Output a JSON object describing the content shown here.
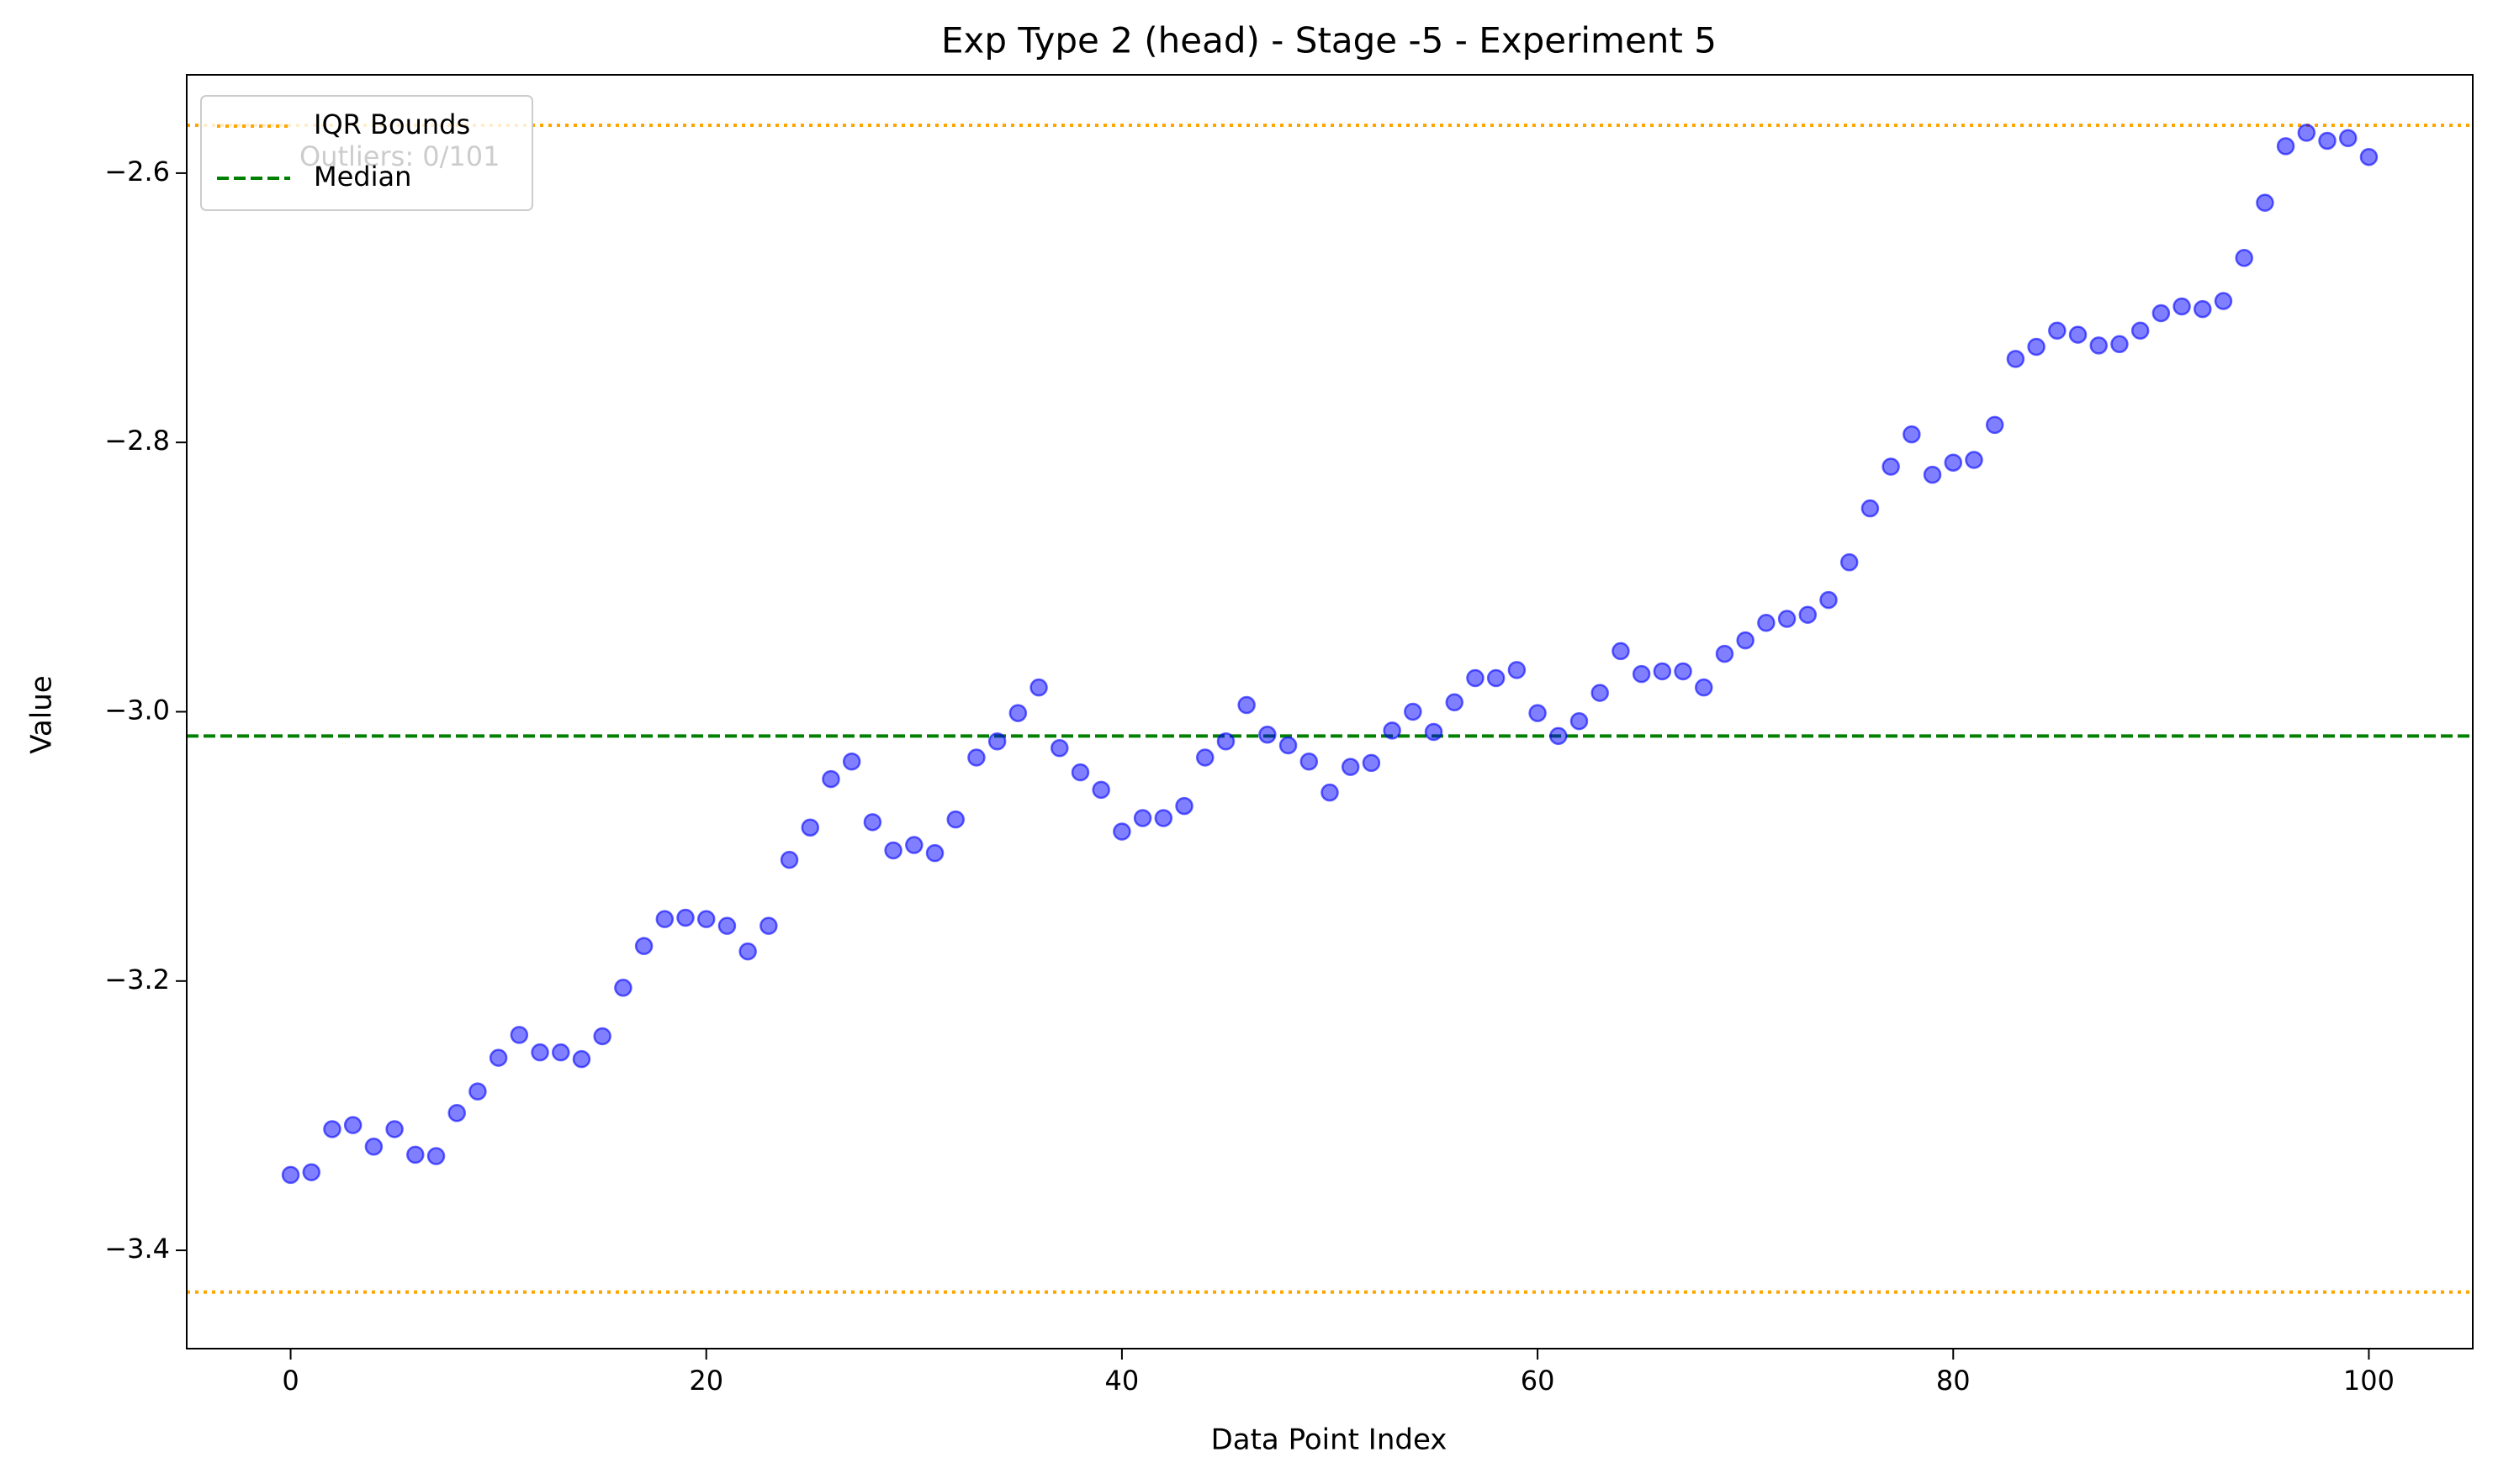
{
  "chart_data": {
    "type": "scatter",
    "title": "Exp Type 2 (head) - Stage -5 - Experiment 5",
    "x_label": "Data Point Index",
    "y_label": "Value",
    "annotation": "Outliers: 0/101",
    "x": [
      0,
      1,
      2,
      3,
      4,
      5,
      6,
      7,
      8,
      9,
      10,
      11,
      12,
      13,
      14,
      15,
      16,
      17,
      18,
      19,
      20,
      21,
      22,
      23,
      24,
      25,
      26,
      27,
      28,
      29,
      30,
      31,
      32,
      33,
      34,
      35,
      36,
      37,
      38,
      39,
      40,
      41,
      42,
      43,
      44,
      45,
      46,
      47,
      48,
      49,
      50,
      51,
      52,
      53,
      54,
      55,
      56,
      57,
      58,
      59,
      60,
      61,
      62,
      63,
      64,
      65,
      66,
      67,
      68,
      69,
      70,
      71,
      72,
      73,
      74,
      75,
      76,
      77,
      78,
      79,
      80,
      81,
      82,
      83,
      84,
      85,
      86,
      87,
      88,
      89,
      90,
      91,
      92,
      93,
      94,
      95,
      96,
      97,
      98,
      99,
      100
    ],
    "values": [
      -3.344,
      -3.342,
      -3.31,
      -3.307,
      -3.323,
      -3.31,
      -3.329,
      -3.33,
      -3.298,
      -3.282,
      -3.257,
      -3.24,
      -3.253,
      -3.253,
      -3.258,
      -3.241,
      -3.205,
      -3.174,
      -3.154,
      -3.153,
      -3.154,
      -3.159,
      -3.178,
      -3.159,
      -3.11,
      -3.086,
      -3.05,
      -3.037,
      -3.082,
      -3.103,
      -3.099,
      -3.105,
      -3.08,
      -3.034,
      -3.022,
      -3.001,
      -2.982,
      -3.027,
      -3.045,
      -3.058,
      -3.089,
      -3.079,
      -3.079,
      -3.07,
      -3.034,
      -3.022,
      -2.995,
      -3.017,
      -3.025,
      -3.037,
      -3.06,
      -3.041,
      -3.038,
      -3.014,
      -3.0,
      -3.015,
      -2.993,
      -2.975,
      -2.975,
      -2.969,
      -3.001,
      -3.018,
      -3.007,
      -2.986,
      -2.955,
      -2.972,
      -2.97,
      -2.97,
      -2.982,
      -2.957,
      -2.947,
      -2.934,
      -2.931,
      -2.928,
      -2.917,
      -2.889,
      -2.849,
      -2.818,
      -2.794,
      -2.824,
      -2.815,
      -2.813,
      -2.787,
      -2.738,
      -2.729,
      -2.717,
      -2.72,
      -2.728,
      -2.727,
      -2.717,
      -2.704,
      -2.699,
      -2.701,
      -2.695,
      -2.663,
      -2.622,
      -2.58,
      -2.57,
      -2.576,
      -2.574,
      -2.588
    ],
    "color": "#0000ff",
    "iqr_bounds": {
      "name": "IQR Bounds",
      "values": [
        -3.431,
        -2.5645
      ],
      "color": "#ffa500"
    },
    "median": {
      "name": "Median",
      "value": -3.018,
      "color": "#008000"
    },
    "xlim": [
      -5,
      105
    ],
    "xticks": [
      0,
      20,
      40,
      60,
      80,
      100
    ],
    "ylim": [
      -3.473,
      -2.527
    ],
    "yticks": [
      {
        "value": -3.4,
        "label": "−3.4"
      },
      {
        "value": -3.2,
        "label": "−3.2"
      },
      {
        "value": -3.0,
        "label": "−3.0"
      },
      {
        "value": -2.8,
        "label": "−2.8"
      },
      {
        "value": -2.6,
        "label": "−2.6"
      }
    ],
    "legend": "upper left"
  }
}
